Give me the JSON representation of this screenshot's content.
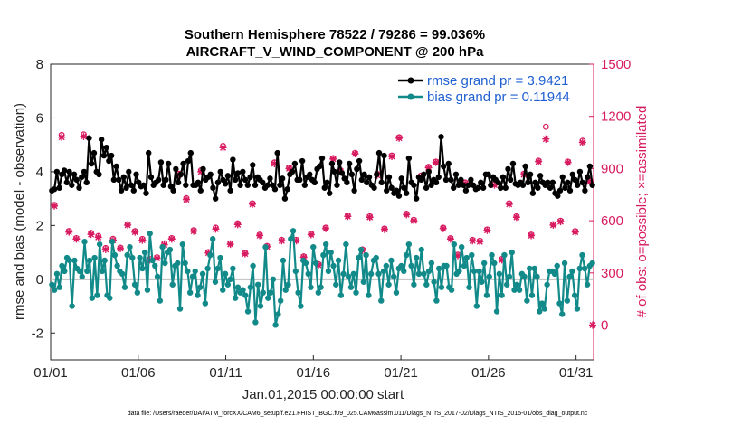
{
  "colors": {
    "rmse": "#000000",
    "bias": "#138a8a",
    "obs": "#d81b60",
    "legend_text": "#1f5fd1",
    "zero_line": "#bfbfbf"
  },
  "chart_data": {
    "type": "line",
    "title_line1": "Southern Hemisphere 78522 / 79286 = 99.036%",
    "title_line2": "AIRCRAFT_V_WIND_COMPONENT @ 200 hPa",
    "xlabel": "Jan.01,2015 00:00:00 start",
    "ylabel_left": "rmse and bias (model - observation)",
    "ylabel_right": "# of obs: o=possible; ×=assimilated",
    "footer": "data file: /Users/raeder/DAI/ATM_forcXX/CAM6_setup/f.e21.FHIST_BGC.f09_025.CAM6assim.011/Diags_NTrS_2017-02/Diags_NTrS_2015-01/obs_diag_output.nc",
    "x_ticks": [
      {
        "value": 1,
        "label": "01/01"
      },
      {
        "value": 6,
        "label": "01/06"
      },
      {
        "value": 11,
        "label": "01/11"
      },
      {
        "value": 16,
        "label": "01/16"
      },
      {
        "value": 21,
        "label": "01/21"
      },
      {
        "value": 26,
        "label": "01/26"
      },
      {
        "value": 31,
        "label": "01/31"
      }
    ],
    "xlim": [
      1,
      32
    ],
    "ylim_left": [
      -3,
      8
    ],
    "ylim_right": [
      -200,
      1500
    ],
    "y_ticks_left": [
      -2,
      0,
      2,
      4,
      6,
      8
    ],
    "y_ticks_right": [
      0,
      300,
      600,
      900,
      1200,
      1500
    ],
    "legend": [
      {
        "name": "rmse grand pr = 3.9421"
      },
      {
        "name": "bias grand pr = 0.11944"
      }
    ],
    "rmse": [
      3.3,
      3.35,
      4.0,
      3.4,
      3.9,
      4.05,
      3.6,
      4.0,
      3.5,
      3.9,
      3.7,
      3.4,
      3.8,
      4.0,
      3.6,
      5.25,
      4.3,
      4.7,
      4.0,
      3.9,
      5.2,
      4.6,
      4.9,
      4.4,
      4.6,
      3.7,
      4.2,
      3.7,
      3.3,
      3.8,
      3.4,
      4.0,
      3.5,
      3.3,
      3.9,
      3.6,
      3.45,
      3.5,
      3.2,
      4.7,
      3.8,
      3.5,
      3.6,
      3.7,
      4.35,
      3.5,
      3.7,
      4.3,
      3.45,
      3.3,
      4.1,
      3.6,
      3.9,
      4.3,
      3.5,
      4.4,
      4.7,
      3.5,
      3.5,
      3.6,
      3.3,
      4.1,
      3.7,
      3.8,
      3.9,
      3.4,
      3.0,
      3.6,
      4.0,
      3.7,
      3.55,
      3.85,
      3.3,
      4.45,
      3.7,
      3.95,
      3.5,
      4.0,
      3.7,
      3.5,
      3.8,
      4.25,
      3.5,
      3.8,
      3.7,
      3.6,
      3.4,
      3.5,
      3.75,
      3.5,
      3.35,
      4.7,
      3.5,
      3.75,
      3.0,
      3.35,
      3.9,
      4.0,
      4.3,
      3.7,
      3.7,
      4.4,
      3.5,
      3.8,
      3.9,
      3.7,
      3.6,
      4.1,
      4.2,
      4.5,
      3.4,
      3.6,
      3.2,
      4.3,
      4.0,
      3.5,
      4.35,
      3.95,
      3.75,
      3.6,
      4.3,
      3.9,
      3.3,
      4.1,
      4.4,
      3.7,
      3.9,
      3.6,
      3.8,
      3.5,
      3.4,
      3.9,
      4.7,
      3.6,
      4.6,
      3.3,
      3.8,
      3.4,
      3.2,
      3.3,
      3.1,
      3.75,
      3.4,
      3.2,
      4.5,
      3.6,
      3.5,
      3.0,
      3.8,
      3.7,
      3.9,
      3.4,
      4.0,
      3.5,
      3.7,
      3.6,
      3.8,
      5.3,
      4.2,
      3.7,
      4.3,
      3.7,
      3.4,
      3.9,
      3.5,
      3.7,
      3.5,
      3.3,
      3.5,
      3.7,
      3.5,
      3.35,
      3.4,
      3.6,
      3.4,
      3.9,
      3.9,
      3.5,
      3.8,
      3.7,
      3.6,
      3.4,
      3.8,
      3.4,
      4.1,
      3.7,
      4.3,
      3.55,
      3.5,
      3.6,
      3.5,
      4.2,
      3.6,
      3.9,
      3.2,
      3.6,
      3.4,
      3.85,
      3.6,
      3.5,
      3.6,
      3.4,
      3.6,
      3.2,
      3.1,
      3.3,
      3.8,
      3.4,
      3.6,
      3.3,
      3.9,
      3.7,
      3.5,
      4.0,
      3.6,
      3.3,
      3.8,
      4.2,
      3.5
    ],
    "bias": [
      -0.2,
      -0.4,
      0.2,
      -0.3,
      0.5,
      0.3,
      0.8,
      0.7,
      -1.0,
      0.7,
      0.4,
      0.3,
      0.1,
      1.4,
      0.3,
      0.7,
      -0.7,
      0.8,
      -0.6,
      1.3,
      0.3,
      0.7,
      -0.6,
      -0.7,
      1.4,
      0.9,
      0.5,
      0.3,
      0.2,
      -0.3,
      0.9,
      1.2,
      0.8,
      -0.2,
      -0.5,
      0.8,
      0.4,
      1.0,
      -0.4,
      1.7,
      0.7,
      0.5,
      0.1,
      -0.8,
      1.2,
      0.6,
      1.0,
      1.1,
      -0.2,
      0.5,
      0.6,
      -1.1,
      1.3,
      0.6,
      0.3,
      -0.5,
      0.1,
      0.3,
      -0.6,
      -0.3,
      0.2,
      -0.9,
      0.4,
      0.9,
      1.5,
      -0.1,
      0.4,
      0.8,
      -0.4,
      0.2,
      -0.2,
      0.0,
      0.4,
      -0.7,
      -0.3,
      -0.5,
      -0.4,
      -0.6,
      -1.2,
      -0.3,
      0.5,
      -1.6,
      -0.2,
      -1.0,
      -0.5,
      1.2,
      -0.7,
      -0.5,
      0.0,
      -1.7,
      -1.3,
      -0.8,
      0.7,
      -0.4,
      -0.2,
      1.5,
      1.8,
      0.3,
      -0.5,
      -1.0,
      0.7,
      0.6,
      0.2,
      -0.3,
      1.2,
      0.6,
      -0.5,
      -0.3,
      0.9,
      1.3,
      0.3,
      1.0,
      0.5,
      -0.2,
      0.7,
      -0.6,
      0.2,
      1.3,
      0.1,
      -0.3,
      0.2,
      -0.5,
      0.8,
      1.1,
      -0.1,
      0.9,
      -0.6,
      0.2,
      0.7,
      0.8,
      0.2,
      -0.8,
      0.3,
      0.5,
      -0.2,
      0.7,
      0.1,
      -0.5,
      0.4,
      0.5,
      0.3,
      0.9,
      1.3,
      0.5,
      -0.2,
      0.8,
      0.2,
      1.1,
      0.2,
      -0.2,
      0.3,
      0.6,
      -0.1,
      -0.8,
      0.4,
      -0.3,
      0.5,
      0.5,
      -0.3,
      -0.4,
      1.3,
      0.2,
      0.3,
      1.2,
      0.5,
      0.8,
      -0.3,
      0.9,
      0.3,
      -1.0,
      0.3,
      -0.1,
      0.6,
      -0.6,
      0.1,
      0.9,
      0.6,
      -1.2,
      0.2,
      -0.6,
      0.9,
      -0.2,
      0.1,
      1.0,
      -0.4,
      -0.2,
      -0.4,
      0.2,
      0.1,
      -0.8,
      0.4,
      -0.6,
      0.4,
      0.1,
      -1.2,
      -0.9,
      -1.1,
      -0.2,
      0.3,
      0.3,
      0.2,
      0.5,
      -0.9,
      -1.3,
      0.6,
      -0.8,
      0.1,
      0.3,
      -0.6,
      -1.1,
      0.4,
      0.9,
      0.4,
      -0.2,
      0.5,
      0.6
    ],
    "obs_possible": [
      691,
      1093,
      541,
      500,
      1096,
      530,
      512,
      443,
      496,
      445,
      580,
      540,
      495,
      380,
      390,
      470,
      500,
      870,
      730,
      545,
      890,
      420,
      560,
      1030,
      470,
      585,
      415,
      700,
      520,
      455,
      935,
      490,
      905,
      490,
      395,
      525,
      350,
      560,
      960,
      890,
      630,
      990,
      435,
      625,
      870,
      555,
      975,
      1080,
      640,
      605,
      860,
      910,
      940,
      560,
      500,
      405,
      820,
      490,
      485,
      550,
      810,
      380,
      700,
      625,
      870,
      520,
      945,
      1140,
      580,
      600,
      940,
      540,
      1060,
      830
    ],
    "obs_assim": [
      685,
      1080,
      535,
      495,
      1085,
      522,
      505,
      435,
      488,
      440,
      575,
      535,
      488,
      375,
      385,
      462,
      495,
      865,
      722,
      540,
      882,
      415,
      552,
      1020,
      465,
      578,
      410,
      695,
      515,
      450,
      928,
      485,
      900,
      485,
      390,
      520,
      345,
      555,
      955,
      885,
      625,
      985,
      430,
      620,
      862,
      550,
      970,
      1075,
      635,
      600,
      855,
      905,
      935,
      555,
      495,
      400,
      815,
      485,
      480,
      545,
      805,
      375,
      695,
      620,
      865,
      515,
      940,
      1070,
      575,
      595,
      935,
      535,
      1050,
      825
    ]
  }
}
